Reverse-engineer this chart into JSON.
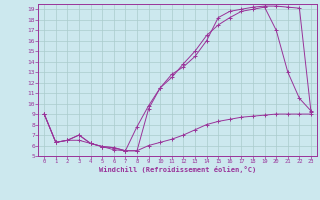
{
  "xlabel": "Windchill (Refroidissement éolien,°C)",
  "bg_color": "#cce8ee",
  "grid_color": "#aacccc",
  "line_color": "#993399",
  "xlim": [
    -0.5,
    23.5
  ],
  "ylim": [
    5,
    19.5
  ],
  "xticks": [
    0,
    1,
    2,
    3,
    4,
    5,
    6,
    7,
    8,
    9,
    10,
    11,
    12,
    13,
    14,
    15,
    16,
    17,
    18,
    19,
    20,
    21,
    22,
    23
  ],
  "yticks": [
    5,
    6,
    7,
    8,
    9,
    10,
    11,
    12,
    13,
    14,
    15,
    16,
    17,
    18,
    19
  ],
  "line1_x": [
    0,
    1,
    2,
    3,
    4,
    5,
    6,
    7,
    8,
    9,
    10,
    11,
    12,
    13,
    14,
    15,
    16,
    17,
    18,
    19,
    20,
    21,
    22,
    23
  ],
  "line1_y": [
    9.0,
    6.3,
    6.5,
    6.5,
    6.2,
    5.9,
    5.6,
    5.5,
    5.5,
    6.0,
    6.3,
    6.6,
    7.0,
    7.5,
    8.0,
    8.3,
    8.5,
    8.7,
    8.8,
    8.9,
    9.0,
    9.0,
    9.0,
    9.0
  ],
  "line2_x": [
    0,
    1,
    2,
    3,
    4,
    5,
    6,
    7,
    8,
    9,
    10,
    11,
    12,
    13,
    14,
    15,
    16,
    17,
    18,
    19,
    20,
    21,
    22,
    23
  ],
  "line2_y": [
    9.0,
    6.3,
    6.5,
    7.0,
    6.2,
    5.9,
    5.8,
    5.5,
    7.8,
    9.8,
    11.5,
    12.5,
    13.8,
    15.0,
    16.5,
    17.5,
    18.2,
    18.8,
    19.0,
    19.2,
    17.0,
    13.0,
    10.5,
    9.3
  ],
  "line3_x": [
    0,
    1,
    2,
    3,
    4,
    5,
    6,
    7,
    8,
    9,
    10,
    11,
    12,
    13,
    14,
    15,
    16,
    17,
    18,
    19,
    20,
    21,
    22,
    23
  ],
  "line3_y": [
    9.0,
    6.3,
    6.5,
    7.0,
    6.2,
    5.9,
    5.8,
    5.5,
    5.5,
    9.5,
    11.5,
    12.8,
    13.5,
    14.5,
    16.0,
    18.2,
    18.8,
    19.0,
    19.2,
    19.3,
    19.3,
    19.2,
    19.1,
    9.2
  ]
}
